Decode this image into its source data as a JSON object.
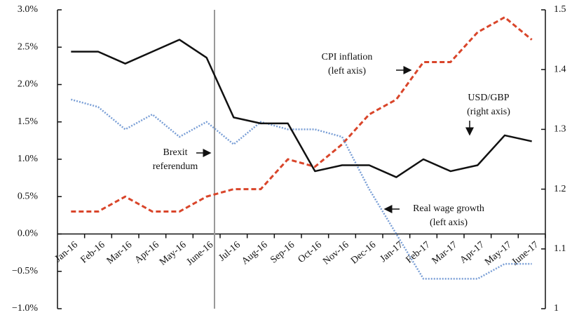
{
  "chart_data": {
    "type": "line",
    "categories": [
      "Jan-16",
      "Feb-16",
      "Mar-16",
      "Apr-16",
      "May-16",
      "June-16",
      "Jul-16",
      "Aug-16",
      "Sep-16",
      "Oct-16",
      "Nov-16",
      "Dec-16",
      "Jan-17",
      "Feb-17",
      "Mar-17",
      "Apr-17",
      "May-17",
      "June-17"
    ],
    "series": [
      {
        "name": "CPI inflation",
        "color": "#d9452a",
        "axis": "y",
        "style": "dashed",
        "values": [
          0.3,
          0.3,
          0.5,
          0.3,
          0.3,
          0.5,
          0.6,
          0.6,
          1.0,
          0.9,
          1.2,
          1.6,
          1.8,
          2.3,
          2.3,
          2.7,
          2.9,
          2.6
        ]
      },
      {
        "name": "Real wage growth",
        "color": "#7a9fd6",
        "axis": "y",
        "style": "dotted",
        "values": [
          1.8,
          1.7,
          1.4,
          1.6,
          1.3,
          1.5,
          1.2,
          1.5,
          1.4,
          1.4,
          1.3,
          0.6,
          0.0,
          -0.6,
          -0.6,
          -0.6,
          -0.4,
          -0.4
        ]
      },
      {
        "name": "USD/GBP",
        "color": "#111111",
        "axis": "y2",
        "style": "solid",
        "values": [
          1.43,
          1.43,
          1.41,
          1.43,
          1.45,
          1.42,
          1.32,
          1.31,
          1.31,
          1.23,
          1.24,
          1.24,
          1.22,
          1.25,
          1.23,
          1.24,
          1.29,
          1.28
        ]
      }
    ],
    "ylim": [
      -1,
      3
    ],
    "yticks": [
      {
        "value": -1,
        "label": "−1.0%"
      },
      {
        "value": -0.5,
        "label": "−0.5%"
      },
      {
        "value": 0,
        "label": "0.0%"
      },
      {
        "value": 0.5,
        "label": "0.5%"
      },
      {
        "value": 1,
        "label": "1.0%"
      },
      {
        "value": 1.5,
        "label": "1.5%"
      },
      {
        "value": 2,
        "label": "2.0%"
      },
      {
        "value": 2.5,
        "label": "2.5%"
      },
      {
        "value": 3,
        "label": "3.0%"
      }
    ],
    "y2lim": [
      1,
      1.5
    ],
    "y2ticks": [
      1,
      1.1,
      1.2,
      1.3,
      1.4,
      1.5
    ],
    "annotations": [
      {
        "text": [
          "CPI inflation",
          "(left axis)"
        ]
      },
      {
        "text": [
          "USD/GBP",
          "(right axis)"
        ]
      },
      {
        "text": [
          "Brexit",
          "referendum"
        ]
      },
      {
        "text": [
          "Real wage growth",
          "(left axis)"
        ]
      }
    ],
    "grid": false
  }
}
